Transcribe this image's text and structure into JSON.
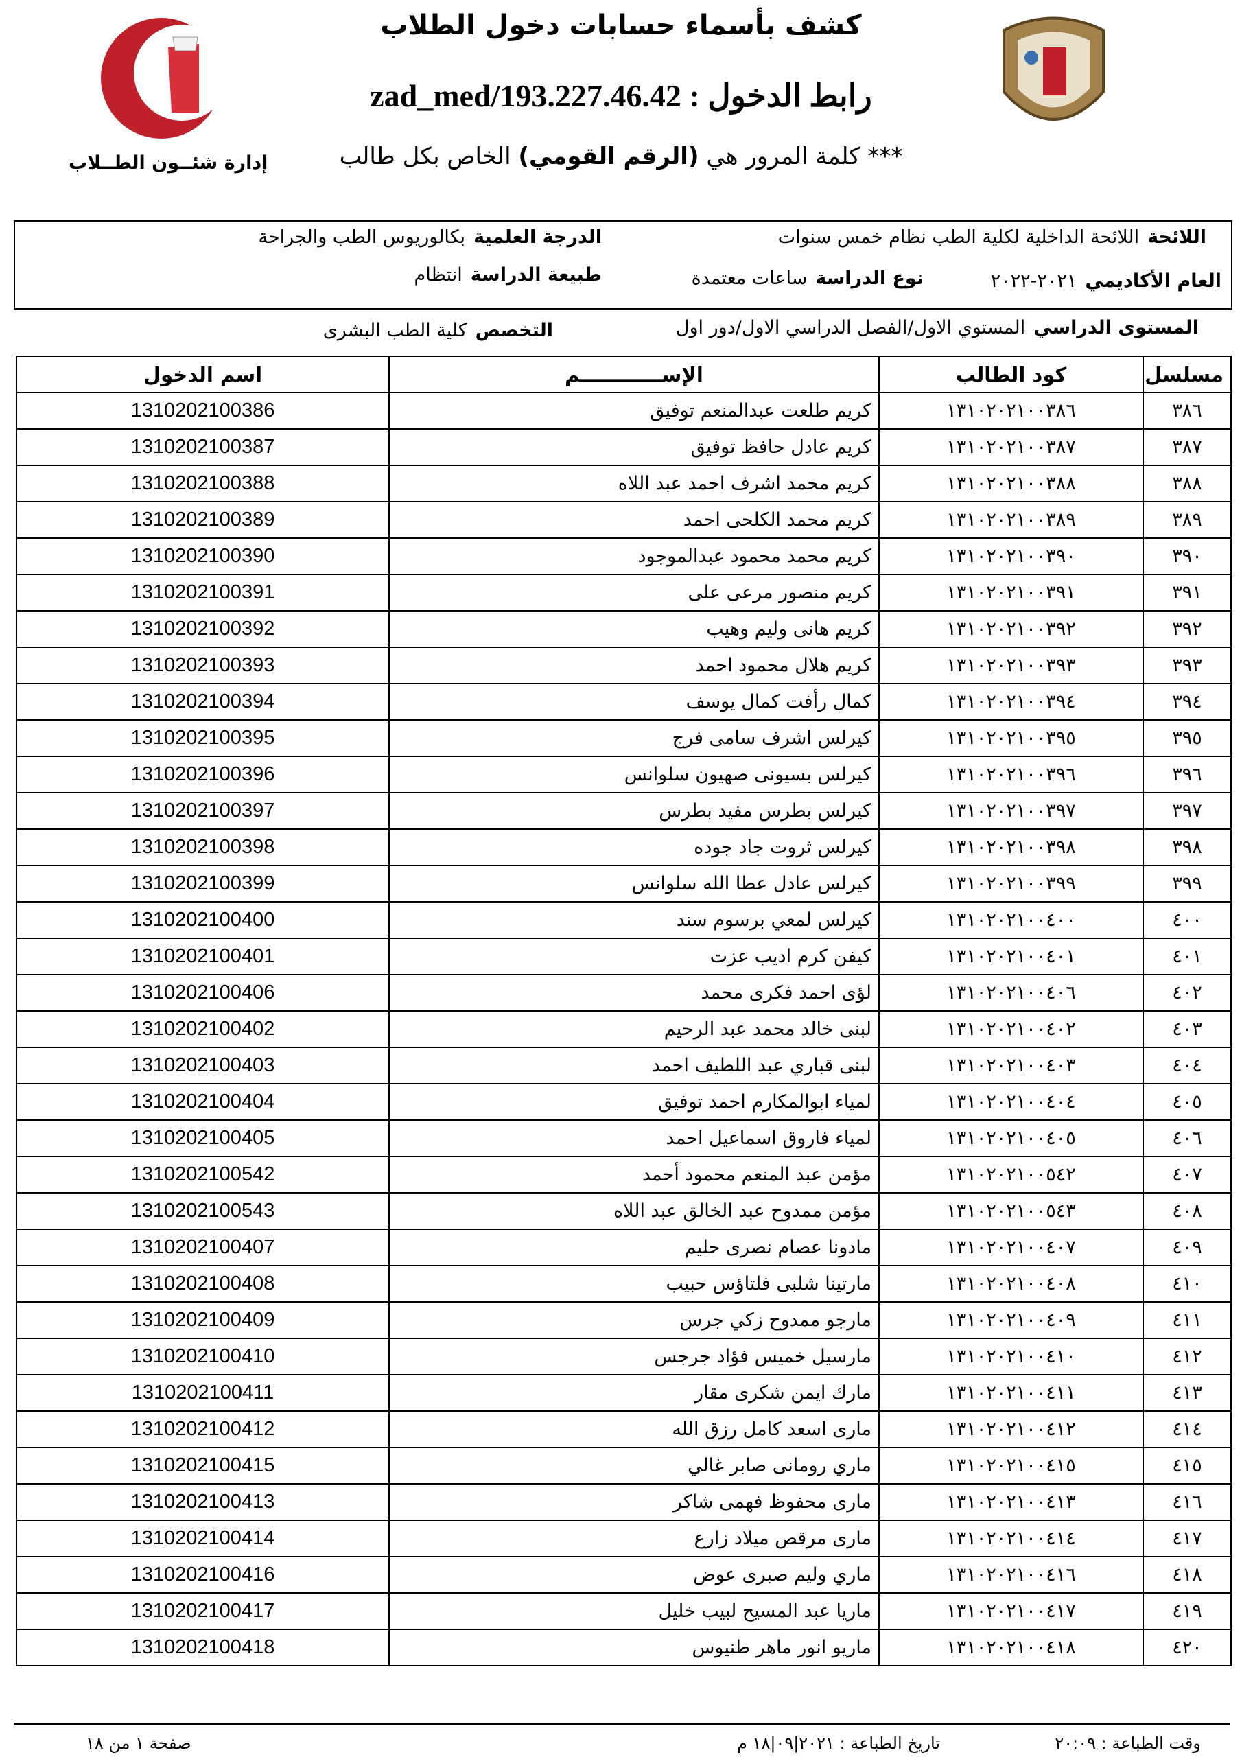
{
  "header": {
    "title": "كشف بأسماء حسابات دخول الطلاب",
    "link": "رابط الدخول : 193.227.46.42/zad_med",
    "password_note": [
      "*** كلمة المرور هي",
      "(الرقم القومي)",
      "الخاص بكل طالب"
    ],
    "department": "إدارة شئــون الطــلاب"
  },
  "info": {
    "regulation": {
      "label": "اللائحة",
      "value": "اللائحة الداخلية لكلية الطب نظام خمس سنوات"
    },
    "degree": {
      "label": "الدرجة العلمية",
      "value": "بكالوريوس الطب والجراحة"
    },
    "academic_year": {
      "label": "العام الأكاديمي",
      "value": "٢٠٢١-٢٠٢٢"
    },
    "study_type": {
      "label": "نوع الدراسة",
      "value": "ساعات معتمدة"
    },
    "study_nature": {
      "label": "طبيعة الدراسة",
      "value": "انتظام"
    },
    "level": {
      "label": "المستوى الدراسي",
      "value": "المستوي الاول/الفصل الدراسي الاول/دور اول"
    },
    "specialization": {
      "label": "التخصص",
      "value": "كلية الطب البشرى"
    }
  },
  "table": {
    "header": [
      "مسلسل",
      "كود الطالب",
      "الإســــــــــــم",
      "اسم الدخول"
    ],
    "rows": [
      [
        "٣٨٦",
        "١٣١٠٢٠٢١٠٠٣٨٦",
        "كريم طلعت عبدالمنعم توفيق",
        "1310202100386"
      ],
      [
        "٣٨٧",
        "١٣١٠٢٠٢١٠٠٣٨٧",
        "كريم عادل حافظ توفيق",
        "1310202100387"
      ],
      [
        "٣٨٨",
        "١٣١٠٢٠٢١٠٠٣٨٨",
        "كريم محمد اشرف احمد عبد اللاه",
        "1310202100388"
      ],
      [
        "٣٨٩",
        "١٣١٠٢٠٢١٠٠٣٨٩",
        "كريم محمد الكلحى احمد",
        "1310202100389"
      ],
      [
        "٣٩٠",
        "١٣١٠٢٠٢١٠٠٣٩٠",
        "كريم محمد محمود عبدالموجود",
        "1310202100390"
      ],
      [
        "٣٩١",
        "١٣١٠٢٠٢١٠٠٣٩١",
        "كريم منصور مرعى على",
        "1310202100391"
      ],
      [
        "٣٩٢",
        "١٣١٠٢٠٢١٠٠٣٩٢",
        "كريم هانى وليم وهيب",
        "1310202100392"
      ],
      [
        "٣٩٣",
        "١٣١٠٢٠٢١٠٠٣٩٣",
        "كريم هلال محمود احمد",
        "1310202100393"
      ],
      [
        "٣٩٤",
        "١٣١٠٢٠٢١٠٠٣٩٤",
        "كمال رأفت كمال يوسف",
        "1310202100394"
      ],
      [
        "٣٩٥",
        "١٣١٠٢٠٢١٠٠٣٩٥",
        "كيرلس اشرف سامى فرج",
        "1310202100395"
      ],
      [
        "٣٩٦",
        "١٣١٠٢٠٢١٠٠٣٩٦",
        "كيرلس بسيونى صهيون سلوانس",
        "1310202100396"
      ],
      [
        "٣٩٧",
        "١٣١٠٢٠٢١٠٠٣٩٧",
        "كيرلس بطرس مفيد بطرس",
        "1310202100397"
      ],
      [
        "٣٩٨",
        "١٣١٠٢٠٢١٠٠٣٩٨",
        "كيرلس ثروت جاد جوده",
        "1310202100398"
      ],
      [
        "٣٩٩",
        "١٣١٠٢٠٢١٠٠٣٩٩",
        "كيرلس عادل عطا الله سلوانس",
        "1310202100399"
      ],
      [
        "٤٠٠",
        "١٣١٠٢٠٢١٠٠٤٠٠",
        "كيرلس لمعي برسوم سند",
        "1310202100400"
      ],
      [
        "٤٠١",
        "١٣١٠٢٠٢١٠٠٤٠١",
        "كيفن كرم اديب عزت",
        "1310202100401"
      ],
      [
        "٤٠٢",
        "١٣١٠٢٠٢١٠٠٤٠٦",
        "لؤى احمد فكرى محمد",
        "1310202100406"
      ],
      [
        "٤٠٣",
        "١٣١٠٢٠٢١٠٠٤٠٢",
        "لبنى خالد محمد عبد الرحيم",
        "1310202100402"
      ],
      [
        "٤٠٤",
        "١٣١٠٢٠٢١٠٠٤٠٣",
        "لبنى قباري عبد اللطيف احمد",
        "1310202100403"
      ],
      [
        "٤٠٥",
        "١٣١٠٢٠٢١٠٠٤٠٤",
        "لمياء ابوالمكارم احمد توفيق",
        "1310202100404"
      ],
      [
        "٤٠٦",
        "١٣١٠٢٠٢١٠٠٤٠٥",
        "لمياء فاروق اسماعيل احمد",
        "1310202100405"
      ],
      [
        "٤٠٧",
        "١٣١٠٢٠٢١٠٠٥٤٢",
        "مؤمن عبد المنعم محمود أحمد",
        "1310202100542"
      ],
      [
        "٤٠٨",
        "١٣١٠٢٠٢١٠٠٥٤٣",
        "مؤمن ممدوح عبد الخالق عبد اللاه",
        "1310202100543"
      ],
      [
        "٤٠٩",
        "١٣١٠٢٠٢١٠٠٤٠٧",
        "مادونا عصام نصرى حليم",
        "1310202100407"
      ],
      [
        "٤١٠",
        "١٣١٠٢٠٢١٠٠٤٠٨",
        "مارتينا شلبى فلتاؤس حبيب",
        "1310202100408"
      ],
      [
        "٤١١",
        "١٣١٠٢٠٢١٠٠٤٠٩",
        "مارجو ممدوح زكي جرس",
        "1310202100409"
      ],
      [
        "٤١٢",
        "١٣١٠٢٠٢١٠٠٤١٠",
        "مارسيل خميس فؤاد جرجس",
        "1310202100410"
      ],
      [
        "٤١٣",
        "١٣١٠٢٠٢١٠٠٤١١",
        "مارك ايمن شكرى مقار",
        "1310202100411"
      ],
      [
        "٤١٤",
        "١٣١٠٢٠٢١٠٠٤١٢",
        "مارى اسعد كامل رزق الله",
        "1310202100412"
      ],
      [
        "٤١٥",
        "١٣١٠٢٠٢١٠٠٤١٥",
        "ماري رومانى صابر غالي",
        "1310202100415"
      ],
      [
        "٤١٦",
        "١٣١٠٢٠٢١٠٠٤١٣",
        "مارى محفوظ فهمى شاكر",
        "1310202100413"
      ],
      [
        "٤١٧",
        "١٣١٠٢٠٢١٠٠٤١٤",
        "مارى مرقص ميلاد زارع",
        "1310202100414"
      ],
      [
        "٤١٨",
        "١٣١٠٢٠٢١٠٠٤١٦",
        "ماري وليم صبرى عوض",
        "1310202100416"
      ],
      [
        "٤١٩",
        "١٣١٠٢٠٢١٠٠٤١٧",
        "ماريا عبد المسيح لبيب خليل",
        "1310202100417"
      ],
      [
        "٤٢٠",
        "١٣١٠٢٠٢١٠٠٤١٨",
        "ماريو انور ماهر طنيوس",
        "1310202100418"
      ]
    ]
  },
  "footer": {
    "print_time": "وقت الطباعة : ٢٠:٠٩",
    "print_date": "تاريخ الطباعة : ٢٠٢١|٠٩|١٨ م",
    "page": "صفحة ١ من ١٨"
  }
}
